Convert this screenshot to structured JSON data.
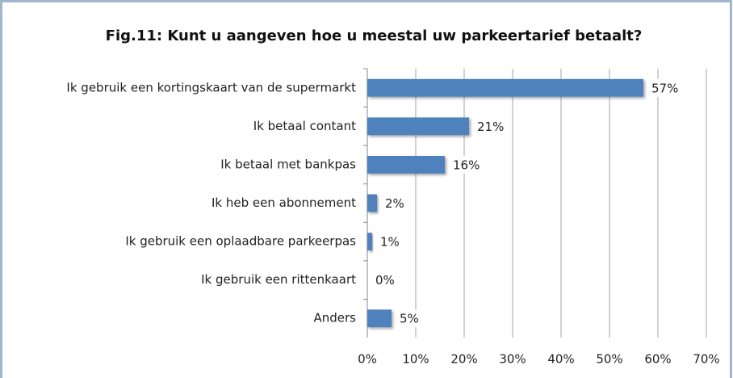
{
  "chart_data": {
    "type": "bar",
    "orientation": "horizontal",
    "title": "Fig.11: Kunt u aangeven hoe u meestal uw parkeertarief betaalt?",
    "categories": [
      "Ik gebruik een kortingskaart van de supermarkt",
      "Ik betaal contant",
      "Ik betaal met bankpas",
      "Ik heb een abonnement",
      "Ik gebruik een oplaadbare parkeerpas",
      "Ik gebruik een rittenkaart",
      "Anders"
    ],
    "values": [
      57,
      21,
      16,
      2,
      1,
      0,
      5
    ],
    "value_labels": [
      "57%",
      "21%",
      "16%",
      "2%",
      "1%",
      "0%",
      "5%"
    ],
    "color": "#4f81bd",
    "xlim": [
      0,
      70
    ],
    "xticks": [
      {
        "value": 0,
        "label": "0%"
      },
      {
        "value": 10,
        "label": "10%"
      },
      {
        "value": 20,
        "label": "20%"
      },
      {
        "value": 30,
        "label": "30%"
      },
      {
        "value": 40,
        "label": "40%"
      },
      {
        "value": 50,
        "label": "50%"
      },
      {
        "value": 60,
        "label": "60%"
      },
      {
        "value": 70,
        "label": "70%"
      }
    ],
    "grid": true
  }
}
